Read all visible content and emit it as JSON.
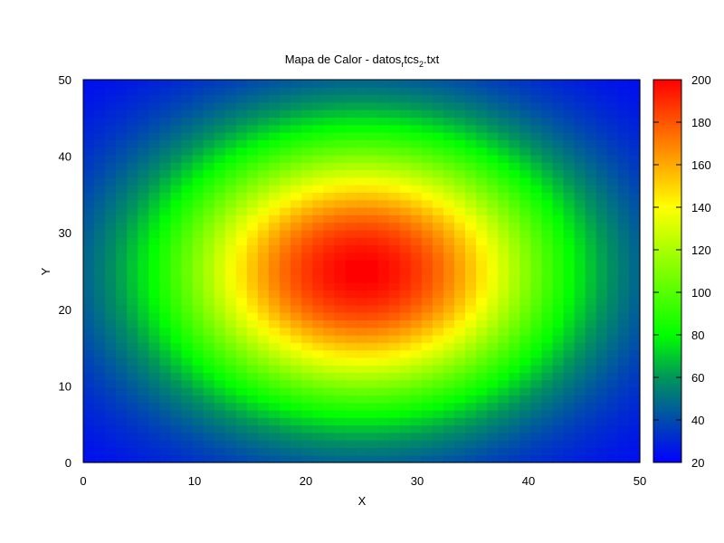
{
  "chart_data": {
    "type": "heatmap",
    "title_main": "Mapa de Calor - datos",
    "title_sub": "r",
    "title_mid": "tcs",
    "title_sub2": "2",
    "title_end": ".txt",
    "xlabel": "X",
    "ylabel": "Y",
    "xlim": [
      0,
      50
    ],
    "ylim": [
      0,
      50
    ],
    "x_ticks": [
      "0",
      "10",
      "20",
      "30",
      "40",
      "50"
    ],
    "y_ticks": [
      "0",
      "10",
      "20",
      "30",
      "40",
      "50"
    ],
    "colorbar": {
      "range": [
        20,
        200
      ],
      "ticks": [
        "20",
        "40",
        "60",
        "80",
        "100",
        "120",
        "140",
        "160",
        "180",
        "200"
      ]
    },
    "grid": false,
    "grid_size": 51,
    "peak": {
      "x": 25,
      "y": 25,
      "value": 200
    },
    "background_value": 20,
    "falloff_radius": 13
  }
}
